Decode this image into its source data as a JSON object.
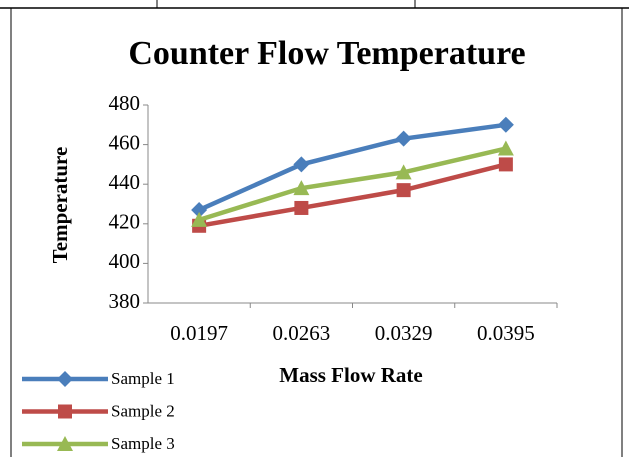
{
  "chart_data": {
    "type": "line",
    "title": "Counter Flow Temperature",
    "x_label": "Mass Flow Rate",
    "y_label": "Temperature",
    "categories": [
      "0.0197",
      "0.0263",
      "0.0329",
      "0.0395"
    ],
    "series": [
      {
        "name": "Sample 1",
        "color": "#4a7ebb",
        "marker": "diamond",
        "values": [
          427,
          450,
          463,
          470
        ]
      },
      {
        "name": "Sample 2",
        "color": "#be4b48",
        "marker": "square",
        "values": [
          419,
          428,
          437,
          450
        ]
      },
      {
        "name": "Sample 3",
        "color": "#98b954",
        "marker": "triangle",
        "values": [
          422,
          438,
          446,
          458
        ]
      }
    ],
    "ylim": [
      380,
      480
    ],
    "yticks": [
      380,
      400,
      420,
      440,
      460,
      480
    ]
  }
}
